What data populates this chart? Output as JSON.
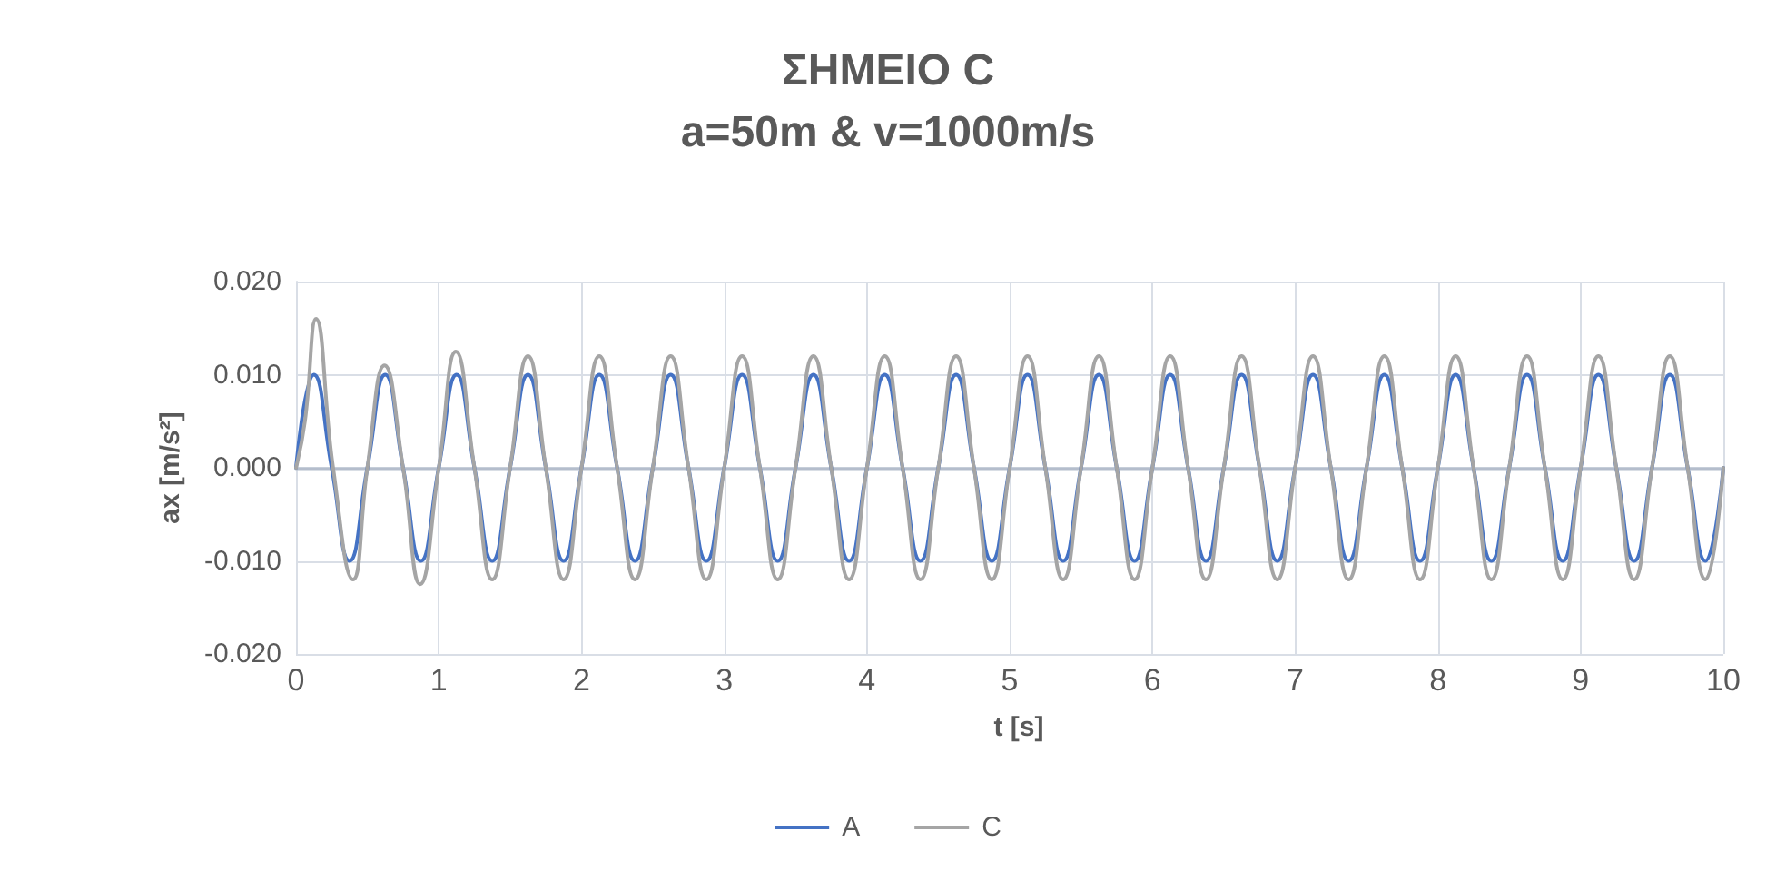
{
  "chart_data": {
    "type": "line",
    "title": "ΣΗΜΕΙΟ C",
    "subtitle": "a=50m & v=1000m/s",
    "xlabel": "t [s]",
    "ylabel": "ax [m/s²]",
    "xlim": [
      0,
      10
    ],
    "xticks": [
      0,
      1,
      2,
      3,
      4,
      5,
      6,
      7,
      8,
      9,
      10
    ],
    "ylim": [
      -0.02,
      0.02
    ],
    "yticks": [
      {
        "value": -0.02,
        "label": "-0.020"
      },
      {
        "value": -0.01,
        "label": "-0.010"
      },
      {
        "value": 0,
        "label": "0.000"
      },
      {
        "value": 0.01,
        "label": "0.010"
      },
      {
        "value": 0.02,
        "label": "0.020"
      }
    ],
    "grid": true,
    "legend": "bottom",
    "marker": "none",
    "line_style": "solid",
    "series": [
      {
        "name": "A",
        "color": "#4472c4",
        "x": [
          0,
          0.125,
          0.25,
          0.375,
          0.5,
          0.625,
          0.75,
          0.875,
          1,
          1.125,
          1.25,
          1.375,
          1.5,
          1.625,
          1.75,
          1.875,
          2,
          2.125,
          2.25,
          2.375,
          2.5,
          2.625,
          2.75,
          2.875,
          3,
          3.125,
          3.25,
          3.375,
          3.5,
          3.625,
          3.75,
          3.875,
          4,
          4.125,
          4.25,
          4.375,
          4.5,
          4.625,
          4.75,
          4.875,
          5,
          5.125,
          5.25,
          5.375,
          5.5,
          5.625,
          5.75,
          5.875,
          6,
          6.125,
          6.25,
          6.375,
          6.5,
          6.625,
          6.75,
          6.875,
          7,
          7.125,
          7.25,
          7.375,
          7.5,
          7.625,
          7.75,
          7.875,
          8,
          8.125,
          8.25,
          8.375,
          8.5,
          8.625,
          8.75,
          8.875,
          9,
          9.125,
          9.25,
          9.375,
          9.5,
          9.625,
          9.75,
          9.875,
          10
        ],
        "values": [
          0,
          0.01,
          0,
          -0.01,
          0,
          0.01,
          0,
          -0.01,
          0,
          0.01,
          0,
          -0.01,
          0,
          0.01,
          0,
          -0.01,
          0,
          0.01,
          0,
          -0.01,
          0,
          0.01,
          0,
          -0.01,
          0,
          0.01,
          0,
          -0.01,
          0,
          0.01,
          0,
          -0.01,
          0,
          0.01,
          0,
          -0.01,
          0,
          0.01,
          0,
          -0.01,
          0,
          0.01,
          0,
          -0.01,
          0,
          0.01,
          0,
          -0.01,
          0,
          0.01,
          0,
          -0.01,
          0,
          0.01,
          0,
          -0.01,
          0,
          0.01,
          0,
          -0.01,
          0,
          0.01,
          0,
          -0.01,
          0,
          0.01,
          0,
          -0.01,
          0,
          0.01,
          0,
          -0.01,
          0,
          0.01,
          0,
          -0.01,
          0,
          0.01,
          0,
          -0.01,
          0
        ]
      },
      {
        "name": "C",
        "color": "#a5a5a5",
        "x": [
          0,
          0.0625,
          0.14,
          0.26,
          0.4,
          0.5,
          0.62,
          0.75,
          0.87,
          1,
          1.12,
          1.25,
          1.375,
          1.5,
          1.625,
          1.75,
          1.875,
          2,
          2.125,
          2.25,
          2.375,
          2.5,
          2.625,
          2.75,
          2.875,
          3,
          3.125,
          3.25,
          3.375,
          3.5,
          3.625,
          3.75,
          3.875,
          4,
          4.125,
          4.25,
          4.375,
          4.5,
          4.625,
          4.75,
          4.875,
          5,
          5.125,
          5.25,
          5.375,
          5.5,
          5.625,
          5.75,
          5.875,
          6,
          6.125,
          6.25,
          6.375,
          6.5,
          6.625,
          6.75,
          6.875,
          7,
          7.125,
          7.25,
          7.375,
          7.5,
          7.625,
          7.75,
          7.875,
          8,
          8.125,
          8.25,
          8.375,
          8.5,
          8.625,
          8.75,
          8.875,
          9,
          9.125,
          9.25,
          9.375,
          9.5,
          9.625,
          9.75,
          9.875,
          10
        ],
        "values": [
          0,
          0.005,
          0.016,
          0,
          -0.012,
          0,
          0.011,
          0,
          -0.0125,
          0,
          0.0125,
          0,
          -0.012,
          0,
          0.012,
          0,
          -0.012,
          0,
          0.012,
          0,
          -0.012,
          0,
          0.012,
          0,
          -0.012,
          0,
          0.012,
          0,
          -0.012,
          0,
          0.012,
          0,
          -0.012,
          0,
          0.012,
          0,
          -0.012,
          0,
          0.012,
          0,
          -0.012,
          0,
          0.012,
          0,
          -0.012,
          0,
          0.012,
          0,
          -0.012,
          0,
          0.012,
          0,
          -0.012,
          0,
          0.012,
          0,
          -0.012,
          0,
          0.012,
          0,
          -0.012,
          0,
          0.012,
          0,
          -0.012,
          0,
          0.012,
          0,
          -0.012,
          0,
          0.012,
          0,
          -0.012,
          0,
          0.012,
          0,
          -0.012,
          0,
          0.012,
          0,
          -0.012,
          0
        ]
      }
    ]
  }
}
